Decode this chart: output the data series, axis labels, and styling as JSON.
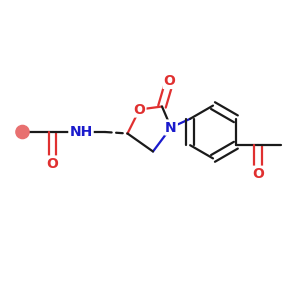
{
  "bg_color": "#ffffff",
  "bond_color": "#1a1a1a",
  "oxygen_color": "#e03030",
  "nitrogen_color": "#1a1acc",
  "bond_lw": 1.6,
  "dbo": 0.013,
  "fig_w": 3.0,
  "fig_h": 3.0,
  "dpi": 100,
  "xlim": [
    0,
    1
  ],
  "ylim": [
    0,
    1
  ]
}
